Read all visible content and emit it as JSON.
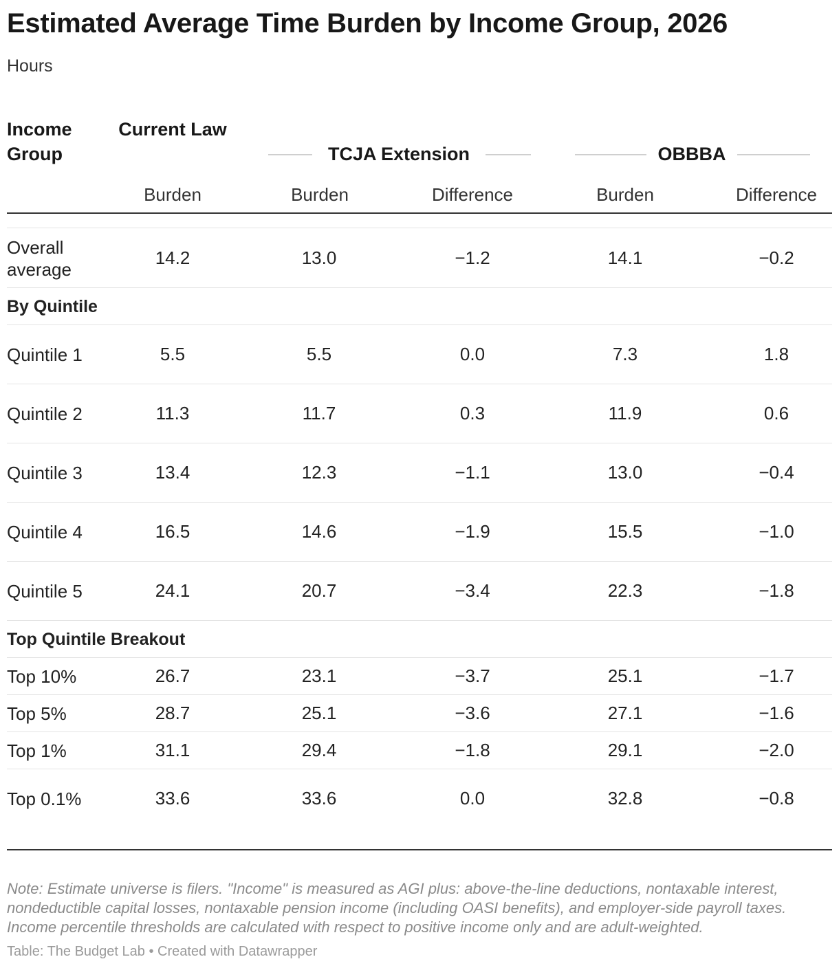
{
  "header": {
    "title": "Estimated Average Time Burden by Income Group, 2026",
    "subtitle": "Hours"
  },
  "table": {
    "col_income_group": "Income Group",
    "col_current_law": "Current Law",
    "group_tcja": "TCJA Extension",
    "group_obbba": "OBBBA",
    "sub_burden": "Burden",
    "sub_difference": "Difference"
  },
  "chart_data": {
    "type": "table",
    "title": "Estimated Average Time Burden by Income Group, 2026",
    "subtitle": "Hours",
    "columns": [
      "Current Law Burden",
      "TCJA Extension Burden",
      "TCJA Extension Difference",
      "OBBBA Burden",
      "OBBBA Difference"
    ],
    "rows": [
      {
        "kind": "data",
        "label": "Overall average",
        "values": [
          "14.2",
          "13.0",
          "−1.2",
          "14.1",
          "−0.2"
        ]
      },
      {
        "kind": "section",
        "label": "By Quintile"
      },
      {
        "kind": "data",
        "label": "Quintile 1",
        "values": [
          "5.5",
          "5.5",
          "0.0",
          "7.3",
          "1.8"
        ]
      },
      {
        "kind": "data",
        "label": "Quintile 2",
        "values": [
          "11.3",
          "11.7",
          "0.3",
          "11.9",
          "0.6"
        ]
      },
      {
        "kind": "data",
        "label": "Quintile 3",
        "values": [
          "13.4",
          "12.3",
          "−1.1",
          "13.0",
          "−0.4"
        ]
      },
      {
        "kind": "data",
        "label": "Quintile 4",
        "values": [
          "16.5",
          "14.6",
          "−1.9",
          "15.5",
          "−1.0"
        ]
      },
      {
        "kind": "data",
        "label": "Quintile 5",
        "values": [
          "24.1",
          "20.7",
          "−3.4",
          "22.3",
          "−1.8"
        ]
      },
      {
        "kind": "section",
        "label": "Top Quintile Breakout"
      },
      {
        "kind": "data",
        "label": "Top 10%",
        "values": [
          "26.7",
          "23.1",
          "−3.7",
          "25.1",
          "−1.7"
        ]
      },
      {
        "kind": "data",
        "label": "Top 5%",
        "values": [
          "28.7",
          "25.1",
          "−3.6",
          "27.1",
          "−1.6"
        ]
      },
      {
        "kind": "data",
        "label": "Top 1%",
        "values": [
          "31.1",
          "29.4",
          "−1.8",
          "29.1",
          "−2.0"
        ]
      },
      {
        "kind": "data",
        "label": "Top 0.1%",
        "values": [
          "33.6",
          "33.6",
          "0.0",
          "32.8",
          "−0.8"
        ]
      }
    ]
  },
  "footer": {
    "note": "Note: Estimate universe is filers. \"Income\" is measured as AGI plus: above-the-line deductions, nontaxable interest, nondeductible capital losses, nontaxable pension income (including OASI benefits), and employer-side payroll taxes. Income percentile thresholds are calculated with respect to positive income only and are adult-weighted.",
    "source": "Table: The Budget Lab • Created with Datawrapper"
  }
}
